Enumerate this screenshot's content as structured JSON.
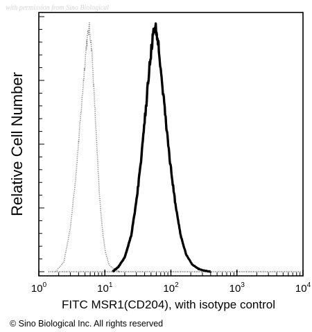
{
  "watermark": "with permission from Sino Biological",
  "copyright": "© Sino Biological Inc. All rights reserved",
  "chart_data": {
    "type": "line",
    "title": "",
    "xlabel": "FITC  MSR1(CD204),  with isotype control",
    "ylabel": "Relative Cell Number",
    "xscale": "log",
    "xlim": [
      1,
      10000
    ],
    "ylim": [
      0,
      1
    ],
    "x_tick_labels": [
      {
        "base": "10",
        "exp": "0"
      },
      {
        "base": "10",
        "exp": "1"
      },
      {
        "base": "10",
        "exp": "2"
      },
      {
        "base": "10",
        "exp": "3"
      },
      {
        "base": "10",
        "exp": "4"
      }
    ],
    "grid": false,
    "legend": "none",
    "series": [
      {
        "role": "isotype control",
        "style": "dotted",
        "color": "#8a8a8a",
        "x": [
          1.8,
          2.4,
          3.0,
          3.6,
          4.2,
          4.8,
          5.3,
          5.8,
          6.3,
          6.9,
          7.6,
          8.3,
          9.2,
          10.2,
          11.5,
          13.0,
          15.0,
          17.0
        ],
        "y": [
          0.0,
          0.04,
          0.18,
          0.38,
          0.6,
          0.8,
          0.94,
          1.0,
          0.92,
          0.72,
          0.5,
          0.31,
          0.17,
          0.08,
          0.03,
          0.015,
          0.005,
          0.0
        ]
      },
      {
        "role": "MSR1(CD204)",
        "style": "solid",
        "color": "#000000",
        "x": [
          13.0,
          16.0,
          20.0,
          25.0,
          30.0,
          36.0,
          42.0,
          48.0,
          54.0,
          58.0,
          63.0,
          70.0,
          80.0,
          95.0,
          115.0,
          140.0,
          170.0,
          210.0,
          260.0,
          320.0,
          400.0
        ],
        "y": [
          0.0,
          0.02,
          0.06,
          0.15,
          0.29,
          0.48,
          0.68,
          0.86,
          0.98,
          1.0,
          0.96,
          0.84,
          0.67,
          0.47,
          0.29,
          0.15,
          0.07,
          0.03,
          0.012,
          0.004,
          0.0
        ]
      }
    ]
  },
  "colors": {
    "axis": "#000000",
    "isotype": "#8a8a8a",
    "sample": "#000000"
  }
}
